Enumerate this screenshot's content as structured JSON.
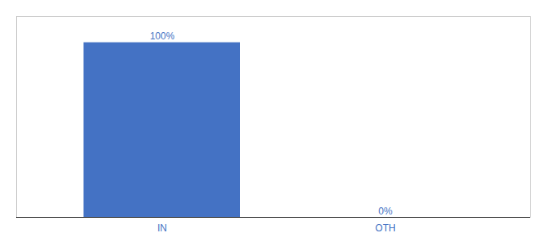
{
  "chart_data": {
    "type": "bar",
    "categories": [
      "IN",
      "OTH"
    ],
    "values": [
      100,
      0
    ],
    "value_labels": [
      "100%",
      "0%"
    ],
    "data_labels": true,
    "color": "#4472c4",
    "ylim": [
      0,
      115
    ],
    "tick_labels": "x",
    "grid": false
  }
}
